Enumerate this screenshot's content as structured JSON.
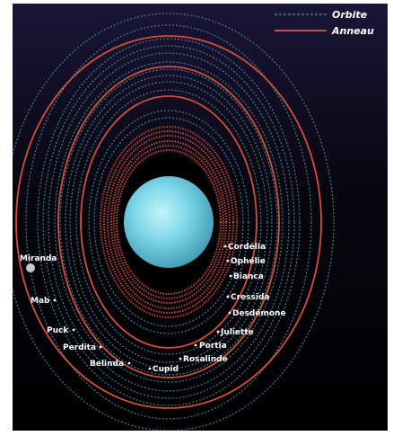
{
  "legend": {
    "orbit_label": "Orbite",
    "ring_label": "Anneau"
  },
  "colors": {
    "orbit": "#3f7f8f",
    "ring": "#c8503c",
    "background_top": "#1b1538",
    "background_bottom": "#000000",
    "planet": "#7fd8e8"
  },
  "moons": {
    "cordelia": "Cordélia",
    "ophelie": "Ophélie",
    "bianca": "Bianca",
    "cressida": "Cressida",
    "desdemone": "Desdémone",
    "juliette": "Juliette",
    "portia": "Portia",
    "rosalinde": "Rosalinde",
    "cupid": "Cupid",
    "belinda": "Belinda",
    "perdita": "Perdita",
    "puck": "Puck",
    "mab": "Mab",
    "miranda": "Miranda"
  }
}
